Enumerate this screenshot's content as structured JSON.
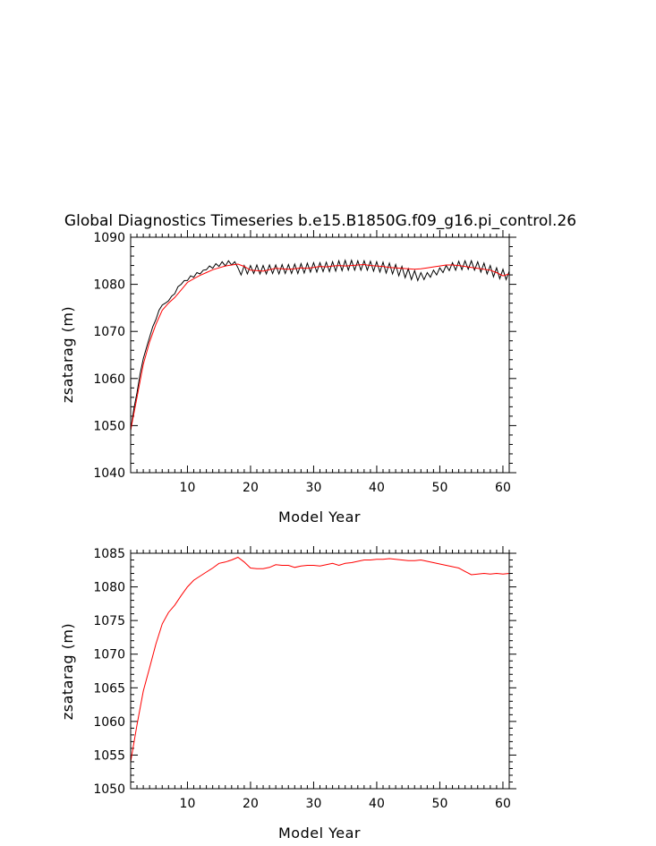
{
  "chart_data": [
    {
      "type": "line",
      "title": "Global Diagnostics Timeseries b.e15.B1850G.f09_g16.pi_control.26",
      "xlabel": "Model Year",
      "ylabel": "zsatarag (m)",
      "xlim": [
        1,
        61
      ],
      "ylim": [
        1040,
        1090
      ],
      "xticks": [
        10,
        20,
        30,
        40,
        50,
        60
      ],
      "yticks": [
        1040,
        1050,
        1060,
        1070,
        1080,
        1090
      ],
      "grid": false,
      "legend": "none",
      "series": [
        {
          "color": "#000000",
          "style": "monthly",
          "x": [
            1.0,
            1.5,
            2.0,
            2.5,
            3.0,
            3.5,
            4.0,
            4.5,
            5.0,
            5.5,
            6.0,
            6.5,
            7.0,
            7.5,
            8.0,
            8.5,
            9.0,
            9.5,
            10.0,
            10.5,
            11.0,
            11.5,
            12.0,
            12.5,
            13.0,
            13.5,
            14.0,
            14.5,
            15.0,
            15.5,
            16.0,
            16.5,
            17.0,
            17.5,
            18.0,
            18.5,
            19.0,
            19.5,
            20.0,
            20.5,
            21.0,
            21.5,
            22.0,
            22.5,
            23.0,
            23.5,
            24.0,
            24.5,
            25.0,
            25.5,
            26.0,
            26.5,
            27.0,
            27.5,
            28.0,
            28.5,
            29.0,
            29.5,
            30.0,
            30.5,
            31.0,
            31.5,
            32.0,
            32.5,
            33.0,
            33.5,
            34.0,
            34.5,
            35.0,
            35.5,
            36.0,
            36.5,
            37.0,
            37.5,
            38.0,
            38.5,
            39.0,
            39.5,
            40.0,
            40.5,
            41.0,
            41.5,
            42.0,
            42.5,
            43.0,
            43.5,
            44.0,
            44.5,
            45.0,
            45.5,
            46.0,
            46.5,
            47.0,
            47.5,
            48.0,
            48.5,
            49.0,
            49.5,
            50.0,
            50.5,
            51.0,
            51.5,
            52.0,
            52.5,
            53.0,
            53.5,
            54.0,
            54.5,
            55.0,
            55.5,
            56.0,
            56.5,
            57.0,
            57.5,
            58.0,
            58.5,
            59.0,
            59.5,
            60.0,
            60.5,
            61.0
          ],
          "y": [
            1049.0,
            1053.5,
            1057.0,
            1061.0,
            1064.2,
            1066.5,
            1068.8,
            1071.0,
            1072.5,
            1074.5,
            1075.6,
            1076.0,
            1076.5,
            1077.5,
            1078.0,
            1079.5,
            1080.0,
            1080.8,
            1080.8,
            1081.8,
            1081.5,
            1082.5,
            1082.2,
            1083.0,
            1083.1,
            1083.9,
            1083.4,
            1084.4,
            1083.8,
            1084.8,
            1083.9,
            1085.0,
            1084.1,
            1084.8,
            1083.5,
            1082.0,
            1084.0,
            1082.2,
            1084.0,
            1082.3,
            1084.1,
            1082.2,
            1084.0,
            1082.2,
            1084.1,
            1082.3,
            1084.1,
            1082.2,
            1084.2,
            1082.3,
            1084.2,
            1082.3,
            1084.3,
            1082.3,
            1084.4,
            1082.4,
            1084.5,
            1082.6,
            1084.6,
            1082.6,
            1084.6,
            1082.7,
            1084.7,
            1082.7,
            1084.8,
            1082.8,
            1085.0,
            1082.9,
            1085.1,
            1083.0,
            1085.1,
            1083.0,
            1085.0,
            1083.0,
            1085.0,
            1083.0,
            1084.9,
            1082.8,
            1084.8,
            1082.6,
            1084.7,
            1082.4,
            1084.5,
            1082.2,
            1084.2,
            1081.8,
            1083.8,
            1081.4,
            1083.3,
            1081.0,
            1082.9,
            1080.8,
            1082.5,
            1081.0,
            1082.5,
            1081.5,
            1083.0,
            1082.0,
            1083.5,
            1082.5,
            1084.0,
            1082.9,
            1084.6,
            1083.0,
            1084.9,
            1083.1,
            1085.0,
            1083.2,
            1085.0,
            1083.0,
            1084.8,
            1082.6,
            1084.5,
            1082.2,
            1084.0,
            1081.6,
            1083.5,
            1081.2,
            1083.2,
            1081.0,
            1082.8
          ]
        },
        {
          "color": "#ff0000",
          "style": "annual",
          "x": [
            1,
            2,
            3,
            4,
            5,
            6,
            7,
            8,
            9,
            10,
            11,
            12,
            13,
            14,
            15,
            16,
            17,
            18,
            19,
            20,
            21,
            22,
            23,
            24,
            25,
            26,
            27,
            28,
            29,
            30,
            31,
            32,
            33,
            34,
            35,
            36,
            37,
            38,
            39,
            40,
            41,
            42,
            43,
            44,
            45,
            46,
            47,
            48,
            49,
            50,
            51,
            52,
            53,
            54,
            55,
            56,
            57,
            58,
            59,
            60,
            61
          ],
          "y": [
            1049.0,
            1056.0,
            1063.0,
            1067.8,
            1071.5,
            1074.5,
            1076.0,
            1077.2,
            1078.8,
            1080.4,
            1081.2,
            1081.9,
            1082.5,
            1083.1,
            1083.5,
            1083.9,
            1084.1,
            1084.3,
            1083.8,
            1083.0,
            1082.9,
            1082.8,
            1083.1,
            1083.4,
            1083.3,
            1083.2,
            1083.3,
            1083.5,
            1083.4,
            1083.6,
            1083.8,
            1083.7,
            1083.9,
            1084.0,
            1083.9,
            1084.0,
            1084.1,
            1084.2,
            1084.0,
            1083.9,
            1083.8,
            1083.6,
            1083.5,
            1083.4,
            1083.3,
            1083.2,
            1083.3,
            1083.5,
            1083.7,
            1083.9,
            1084.1,
            1084.1,
            1084.0,
            1083.8,
            1083.6,
            1083.4,
            1083.2,
            1083.0,
            1082.5,
            1081.8,
            1082.2
          ]
        }
      ]
    },
    {
      "type": "line",
      "title": "",
      "xlabel": "Model Year",
      "ylabel": "zsatarag (m)",
      "xlim": [
        1,
        61
      ],
      "ylim": [
        1050,
        1085
      ],
      "xticks": [
        10,
        20,
        30,
        40,
        50,
        60
      ],
      "yticks": [
        1050,
        1055,
        1060,
        1065,
        1070,
        1075,
        1080,
        1085
      ],
      "grid": false,
      "legend": "none",
      "series": [
        {
          "color": "#ff0000",
          "style": "annual",
          "x": [
            1,
            2,
            3,
            4,
            5,
            6,
            7,
            8,
            9,
            10,
            11,
            12,
            13,
            14,
            15,
            16,
            17,
            18,
            19,
            20,
            21,
            22,
            23,
            24,
            25,
            26,
            27,
            28,
            29,
            30,
            31,
            32,
            33,
            34,
            35,
            36,
            37,
            38,
            39,
            40,
            41,
            42,
            43,
            44,
            45,
            46,
            47,
            48,
            49,
            50,
            51,
            52,
            53,
            54,
            55,
            56,
            57,
            58,
            59,
            60,
            61
          ],
          "y": [
            1054.0,
            1059.5,
            1064.5,
            1068.0,
            1071.5,
            1074.5,
            1076.2,
            1077.3,
            1078.7,
            1080.0,
            1081.0,
            1081.6,
            1082.2,
            1082.8,
            1083.5,
            1083.7,
            1084.0,
            1084.4,
            1083.7,
            1082.8,
            1082.7,
            1082.7,
            1082.9,
            1083.3,
            1083.2,
            1083.2,
            1082.9,
            1083.1,
            1083.2,
            1083.2,
            1083.1,
            1083.3,
            1083.5,
            1083.2,
            1083.5,
            1083.6,
            1083.8,
            1084.0,
            1084.0,
            1084.1,
            1084.1,
            1084.2,
            1084.1,
            1084.0,
            1083.9,
            1083.9,
            1084.0,
            1083.8,
            1083.6,
            1083.4,
            1083.2,
            1083.0,
            1082.8,
            1082.3,
            1081.8,
            1081.9,
            1082.0,
            1081.9,
            1082.0,
            1081.9,
            1082.0
          ]
        }
      ]
    }
  ]
}
